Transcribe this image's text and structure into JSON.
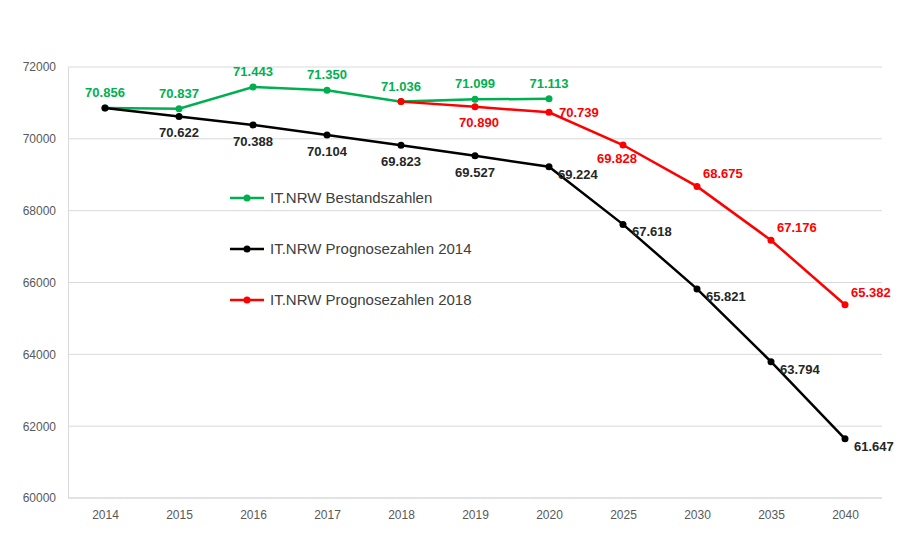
{
  "chart_data": {
    "type": "line",
    "categories": [
      "2014",
      "2015",
      "2016",
      "2017",
      "2018",
      "2019",
      "2020",
      "2025",
      "2030",
      "2035",
      "2040"
    ],
    "ylim": [
      60000,
      72000
    ],
    "yticks": [
      60000,
      62000,
      64000,
      66000,
      68000,
      70000,
      72000
    ],
    "grid": true,
    "legend": "left",
    "data_labels": true,
    "marker": "circle",
    "series": [
      {
        "name": "IT.NRW Bestandszahlen",
        "color": "#00b050",
        "values": [
          70856,
          70837,
          71443,
          71350,
          71036,
          71099,
          71113,
          null,
          null,
          null,
          null
        ],
        "value_labels": [
          "70.856",
          "70.837",
          "71.443",
          "71.350",
          "71.036",
          "71.099",
          "71.113",
          null,
          null,
          null,
          null
        ]
      },
      {
        "name": "IT.NRW Prognosezahlen 2014",
        "color": "#000000",
        "values": [
          70856,
          70622,
          70388,
          70104,
          69823,
          69527,
          69224,
          67618,
          65821,
          63794,
          61647
        ],
        "value_labels": [
          null,
          "70.622",
          "70.388",
          "70.104",
          "69.823",
          "69.527",
          "69.224",
          "67.618",
          "65.821",
          "63.794",
          "61.647"
        ]
      },
      {
        "name": "IT.NRW Prognosezahlen 2018",
        "color": "#ff0000",
        "values": [
          null,
          null,
          null,
          null,
          71036,
          70890,
          70739,
          69828,
          68675,
          67176,
          65382
        ],
        "value_labels": [
          null,
          null,
          null,
          null,
          null,
          "70.890",
          "70.739",
          "69.828",
          "68.675",
          "67.176",
          "65.382"
        ]
      }
    ]
  }
}
